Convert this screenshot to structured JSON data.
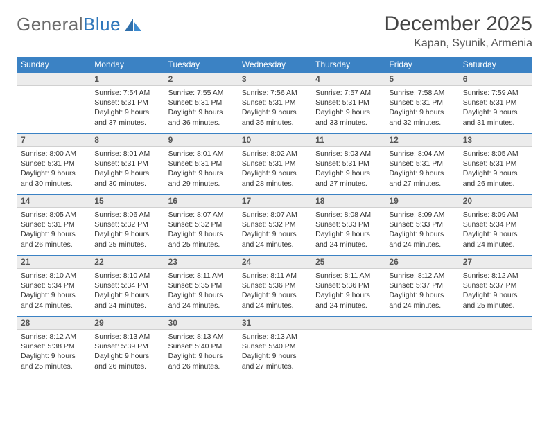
{
  "brand": {
    "part1": "General",
    "part2": "Blue"
  },
  "title": "December 2025",
  "location": "Kapan, Syunik, Armenia",
  "weekdays": [
    "Sunday",
    "Monday",
    "Tuesday",
    "Wednesday",
    "Thursday",
    "Friday",
    "Saturday"
  ],
  "colors": {
    "header_bg": "#3b82c4",
    "header_fg": "#ffffff",
    "daynum_bg": "#ececec",
    "daynum_border_top": "#3b82c4",
    "text": "#333333"
  },
  "first_weekday_index": 1,
  "days": [
    {
      "n": 1,
      "sunrise": "7:54 AM",
      "sunset": "5:31 PM",
      "daylight": "9 hours and 37 minutes."
    },
    {
      "n": 2,
      "sunrise": "7:55 AM",
      "sunset": "5:31 PM",
      "daylight": "9 hours and 36 minutes."
    },
    {
      "n": 3,
      "sunrise": "7:56 AM",
      "sunset": "5:31 PM",
      "daylight": "9 hours and 35 minutes."
    },
    {
      "n": 4,
      "sunrise": "7:57 AM",
      "sunset": "5:31 PM",
      "daylight": "9 hours and 33 minutes."
    },
    {
      "n": 5,
      "sunrise": "7:58 AM",
      "sunset": "5:31 PM",
      "daylight": "9 hours and 32 minutes."
    },
    {
      "n": 6,
      "sunrise": "7:59 AM",
      "sunset": "5:31 PM",
      "daylight": "9 hours and 31 minutes."
    },
    {
      "n": 7,
      "sunrise": "8:00 AM",
      "sunset": "5:31 PM",
      "daylight": "9 hours and 30 minutes."
    },
    {
      "n": 8,
      "sunrise": "8:01 AM",
      "sunset": "5:31 PM",
      "daylight": "9 hours and 30 minutes."
    },
    {
      "n": 9,
      "sunrise": "8:01 AM",
      "sunset": "5:31 PM",
      "daylight": "9 hours and 29 minutes."
    },
    {
      "n": 10,
      "sunrise": "8:02 AM",
      "sunset": "5:31 PM",
      "daylight": "9 hours and 28 minutes."
    },
    {
      "n": 11,
      "sunrise": "8:03 AM",
      "sunset": "5:31 PM",
      "daylight": "9 hours and 27 minutes."
    },
    {
      "n": 12,
      "sunrise": "8:04 AM",
      "sunset": "5:31 PM",
      "daylight": "9 hours and 27 minutes."
    },
    {
      "n": 13,
      "sunrise": "8:05 AM",
      "sunset": "5:31 PM",
      "daylight": "9 hours and 26 minutes."
    },
    {
      "n": 14,
      "sunrise": "8:05 AM",
      "sunset": "5:31 PM",
      "daylight": "9 hours and 26 minutes."
    },
    {
      "n": 15,
      "sunrise": "8:06 AM",
      "sunset": "5:32 PM",
      "daylight": "9 hours and 25 minutes."
    },
    {
      "n": 16,
      "sunrise": "8:07 AM",
      "sunset": "5:32 PM",
      "daylight": "9 hours and 25 minutes."
    },
    {
      "n": 17,
      "sunrise": "8:07 AM",
      "sunset": "5:32 PM",
      "daylight": "9 hours and 24 minutes."
    },
    {
      "n": 18,
      "sunrise": "8:08 AM",
      "sunset": "5:33 PM",
      "daylight": "9 hours and 24 minutes."
    },
    {
      "n": 19,
      "sunrise": "8:09 AM",
      "sunset": "5:33 PM",
      "daylight": "9 hours and 24 minutes."
    },
    {
      "n": 20,
      "sunrise": "8:09 AM",
      "sunset": "5:34 PM",
      "daylight": "9 hours and 24 minutes."
    },
    {
      "n": 21,
      "sunrise": "8:10 AM",
      "sunset": "5:34 PM",
      "daylight": "9 hours and 24 minutes."
    },
    {
      "n": 22,
      "sunrise": "8:10 AM",
      "sunset": "5:34 PM",
      "daylight": "9 hours and 24 minutes."
    },
    {
      "n": 23,
      "sunrise": "8:11 AM",
      "sunset": "5:35 PM",
      "daylight": "9 hours and 24 minutes."
    },
    {
      "n": 24,
      "sunrise": "8:11 AM",
      "sunset": "5:36 PM",
      "daylight": "9 hours and 24 minutes."
    },
    {
      "n": 25,
      "sunrise": "8:11 AM",
      "sunset": "5:36 PM",
      "daylight": "9 hours and 24 minutes."
    },
    {
      "n": 26,
      "sunrise": "8:12 AM",
      "sunset": "5:37 PM",
      "daylight": "9 hours and 24 minutes."
    },
    {
      "n": 27,
      "sunrise": "8:12 AM",
      "sunset": "5:37 PM",
      "daylight": "9 hours and 25 minutes."
    },
    {
      "n": 28,
      "sunrise": "8:12 AM",
      "sunset": "5:38 PM",
      "daylight": "9 hours and 25 minutes."
    },
    {
      "n": 29,
      "sunrise": "8:13 AM",
      "sunset": "5:39 PM",
      "daylight": "9 hours and 26 minutes."
    },
    {
      "n": 30,
      "sunrise": "8:13 AM",
      "sunset": "5:40 PM",
      "daylight": "9 hours and 26 minutes."
    },
    {
      "n": 31,
      "sunrise": "8:13 AM",
      "sunset": "5:40 PM",
      "daylight": "9 hours and 27 minutes."
    }
  ]
}
